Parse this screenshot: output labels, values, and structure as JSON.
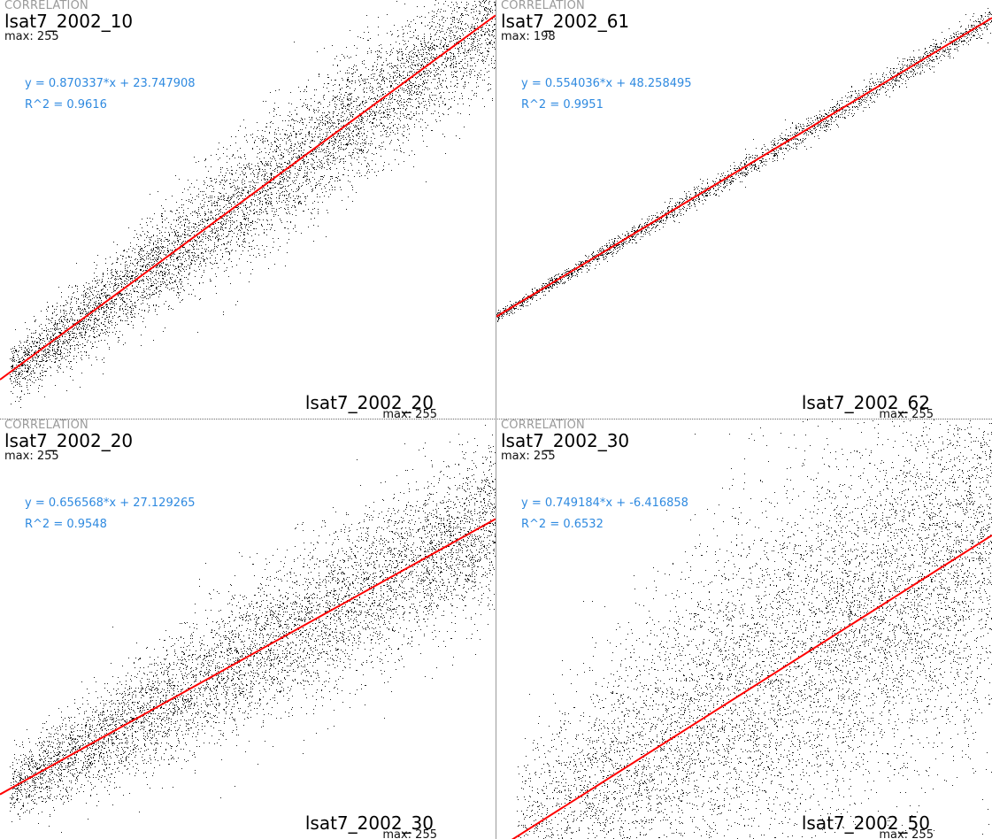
{
  "chart_data": [
    {
      "type": "scatter",
      "title": "CORRELATION",
      "ylabel": "lsat7_2002_10",
      "ymax_label": "max: 255",
      "xlabel": "lsat7_2002_20",
      "xmax_label": "max: 255",
      "equation": "y = 0.870337*x + 23.747908",
      "r2": "R^2 = 0.9616",
      "slope": 0.870337,
      "intercept": 23.747908,
      "xlim": [
        0,
        255
      ],
      "ylim": [
        0,
        255
      ],
      "scatter_spread": 20,
      "regression_color": "#ff0000"
    },
    {
      "type": "scatter",
      "title": "CORRELATION",
      "ylabel": "lsat7_2002_61",
      "ymax_label": "max: 198",
      "xlabel": "lsat7_2002_62",
      "xmax_label": "max: 255",
      "equation": "y = 0.554036*x + 48.258495",
      "r2": "R^2 = 0.9951",
      "slope": 0.554036,
      "intercept": 48.258495,
      "xlim": [
        0,
        255
      ],
      "ylim": [
        0,
        198
      ],
      "scatter_spread": 3,
      "regression_color": "#ff0000"
    },
    {
      "type": "scatter",
      "title": "CORRELATION",
      "ylabel": "lsat7_2002_20",
      "ymax_label": "max: 255",
      "xlabel": "lsat7_2002_30",
      "xmax_label": "max: 255",
      "equation": "y = 0.656568*x + 27.129265",
      "r2": "R^2 = 0.9548",
      "slope": 0.656568,
      "intercept": 27.129265,
      "xlim": [
        0,
        255
      ],
      "ylim": [
        0,
        255
      ],
      "scatter_spread": 24,
      "regression_color": "#ff0000"
    },
    {
      "type": "scatter",
      "title": "CORRELATION",
      "ylabel": "lsat7_2002_30",
      "ymax_label": "max: 255",
      "xlabel": "lsat7_2002_50",
      "xmax_label": "max: 255",
      "equation": "y = 0.749184*x + -6.416858",
      "r2": "R^2 = 0.6532",
      "slope": 0.749184,
      "intercept": -6.416858,
      "xlim": [
        0,
        255
      ],
      "ylim": [
        0,
        255
      ],
      "scatter_spread": 58,
      "regression_color": "#ff0000"
    }
  ]
}
